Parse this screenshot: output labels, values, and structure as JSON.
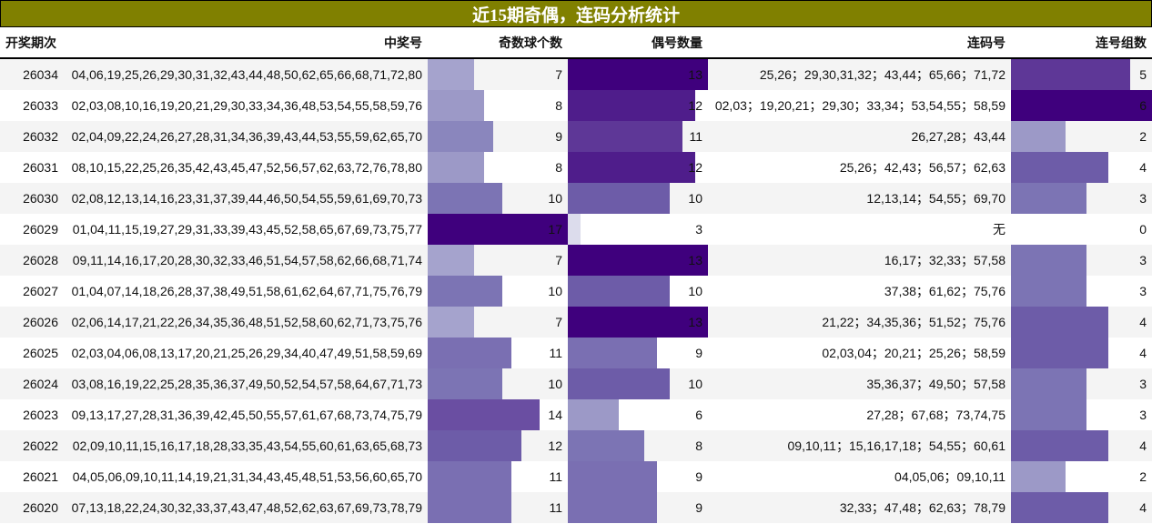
{
  "title": "近15期奇偶，连码分析统计",
  "colors": {
    "title_bg": "#808000",
    "row_alt_bg": "#f4f4f4",
    "scale": [
      "#dcdcec",
      "#c6c7e2",
      "#b4b3d7",
      "#a5a3cd",
      "#9c99c7",
      "#8a86bd",
      "#7c74b4",
      "#7a6fb2",
      "#6d5ca8",
      "#6a4ea2",
      "#5e3797",
      "#4f1d8b",
      "#3f007d"
    ]
  },
  "columns": {
    "period": "开奖期次",
    "numbers": "中奖号",
    "odd_count": "奇数球个数",
    "even_count": "偶号数量",
    "consecutive": "连码号",
    "consecutive_groups": "连号组数"
  },
  "rows": [
    {
      "period": "26034",
      "numbers": "04,06,19,25,26,29,30,31,32,43,44,48,50,62,65,66,68,71,72,80",
      "odd": "7",
      "even": "13",
      "consecutive": "25,26；29,30,31,32；43,44；65,66；71,72",
      "groups": "5"
    },
    {
      "period": "26033",
      "numbers": "02,03,08,10,16,19,20,21,29,30,33,34,36,48,53,54,55,58,59,76",
      "odd": "8",
      "even": "12",
      "consecutive": "02,03；19,20,21；29,30；33,34；53,54,55；58,59",
      "groups": "6"
    },
    {
      "period": "26032",
      "numbers": "02,04,09,22,24,26,27,28,31,34,36,39,43,44,53,55,59,62,65,70",
      "odd": "9",
      "even": "11",
      "consecutive": "26,27,28；43,44",
      "groups": "2"
    },
    {
      "period": "26031",
      "numbers": "08,10,15,22,25,26,35,42,43,45,47,52,56,57,62,63,72,76,78,80",
      "odd": "8",
      "even": "12",
      "consecutive": "25,26；42,43；56,57；62,63",
      "groups": "4"
    },
    {
      "period": "26030",
      "numbers": "02,08,12,13,14,16,23,31,37,39,44,46,50,54,55,59,61,69,70,73",
      "odd": "10",
      "even": "10",
      "consecutive": "12,13,14；54,55；69,70",
      "groups": "3"
    },
    {
      "period": "26029",
      "numbers": "01,04,11,15,19,27,29,31,33,39,43,45,52,58,65,67,69,73,75,77",
      "odd": "17",
      "even": "3",
      "consecutive": "无",
      "groups": "0"
    },
    {
      "period": "26028",
      "numbers": "09,11,14,16,17,20,28,30,32,33,46,51,54,57,58,62,66,68,71,74",
      "odd": "7",
      "even": "13",
      "consecutive": "16,17；32,33；57,58",
      "groups": "3"
    },
    {
      "period": "26027",
      "numbers": "01,04,07,14,18,26,28,37,38,49,51,58,61,62,64,67,71,75,76,79",
      "odd": "10",
      "even": "10",
      "consecutive": "37,38；61,62；75,76",
      "groups": "3"
    },
    {
      "period": "26026",
      "numbers": "02,06,14,17,21,22,26,34,35,36,48,51,52,58,60,62,71,73,75,76",
      "odd": "7",
      "even": "13",
      "consecutive": "21,22；34,35,36；51,52；75,76",
      "groups": "4"
    },
    {
      "period": "26025",
      "numbers": "02,03,04,06,08,13,17,20,21,25,26,29,34,40,47,49,51,58,59,69",
      "odd": "11",
      "even": "9",
      "consecutive": "02,03,04；20,21；25,26；58,59",
      "groups": "4"
    },
    {
      "period": "26024",
      "numbers": "03,08,16,19,22,25,28,35,36,37,49,50,52,54,57,58,64,67,71,73",
      "odd": "10",
      "even": "10",
      "consecutive": "35,36,37；49,50；57,58",
      "groups": "3"
    },
    {
      "period": "26023",
      "numbers": "09,13,17,27,28,31,36,39,42,45,50,55,57,61,67,68,73,74,75,79",
      "odd": "14",
      "even": "6",
      "consecutive": "27,28；67,68；73,74,75",
      "groups": "3"
    },
    {
      "period": "26022",
      "numbers": "02,09,10,11,15,16,17,18,28,33,35,43,54,55,60,61,63,65,68,73",
      "odd": "12",
      "even": "8",
      "consecutive": "09,10,11；15,16,17,18；54,55；60,61",
      "groups": "4"
    },
    {
      "period": "26021",
      "numbers": "04,05,06,09,10,11,14,19,21,31,34,43,45,48,51,53,56,60,65,70",
      "odd": "11",
      "even": "9",
      "consecutive": "04,05,06；09,10,11",
      "groups": "2"
    },
    {
      "period": "26020",
      "numbers": "07,13,18,22,24,30,32,33,37,43,47,48,52,62,63,67,69,73,78,79",
      "odd": "11",
      "even": "9",
      "consecutive": "32,33；47,48；62,63；78,79",
      "groups": "4"
    }
  ],
  "chart_data": {
    "type": "table",
    "title": "近15期奇偶，连码分析统计",
    "columns": [
      "开奖期次",
      "中奖号",
      "奇数球个数",
      "偶号数量",
      "连码号",
      "连号组数"
    ],
    "categories": [
      "26034",
      "26033",
      "26032",
      "26031",
      "26030",
      "26029",
      "26028",
      "26027",
      "26026",
      "26025",
      "26024",
      "26023",
      "26022",
      "26021",
      "26020"
    ],
    "series": [
      {
        "name": "奇数球个数",
        "values": [
          7,
          8,
          9,
          8,
          10,
          17,
          7,
          10,
          7,
          11,
          10,
          14,
          12,
          11,
          11
        ]
      },
      {
        "name": "偶号数量",
        "values": [
          13,
          12,
          11,
          12,
          10,
          3,
          13,
          10,
          13,
          9,
          10,
          6,
          8,
          9,
          9
        ]
      },
      {
        "name": "连号组数",
        "values": [
          5,
          6,
          2,
          4,
          3,
          0,
          3,
          3,
          4,
          4,
          3,
          3,
          4,
          2,
          4
        ]
      }
    ]
  }
}
